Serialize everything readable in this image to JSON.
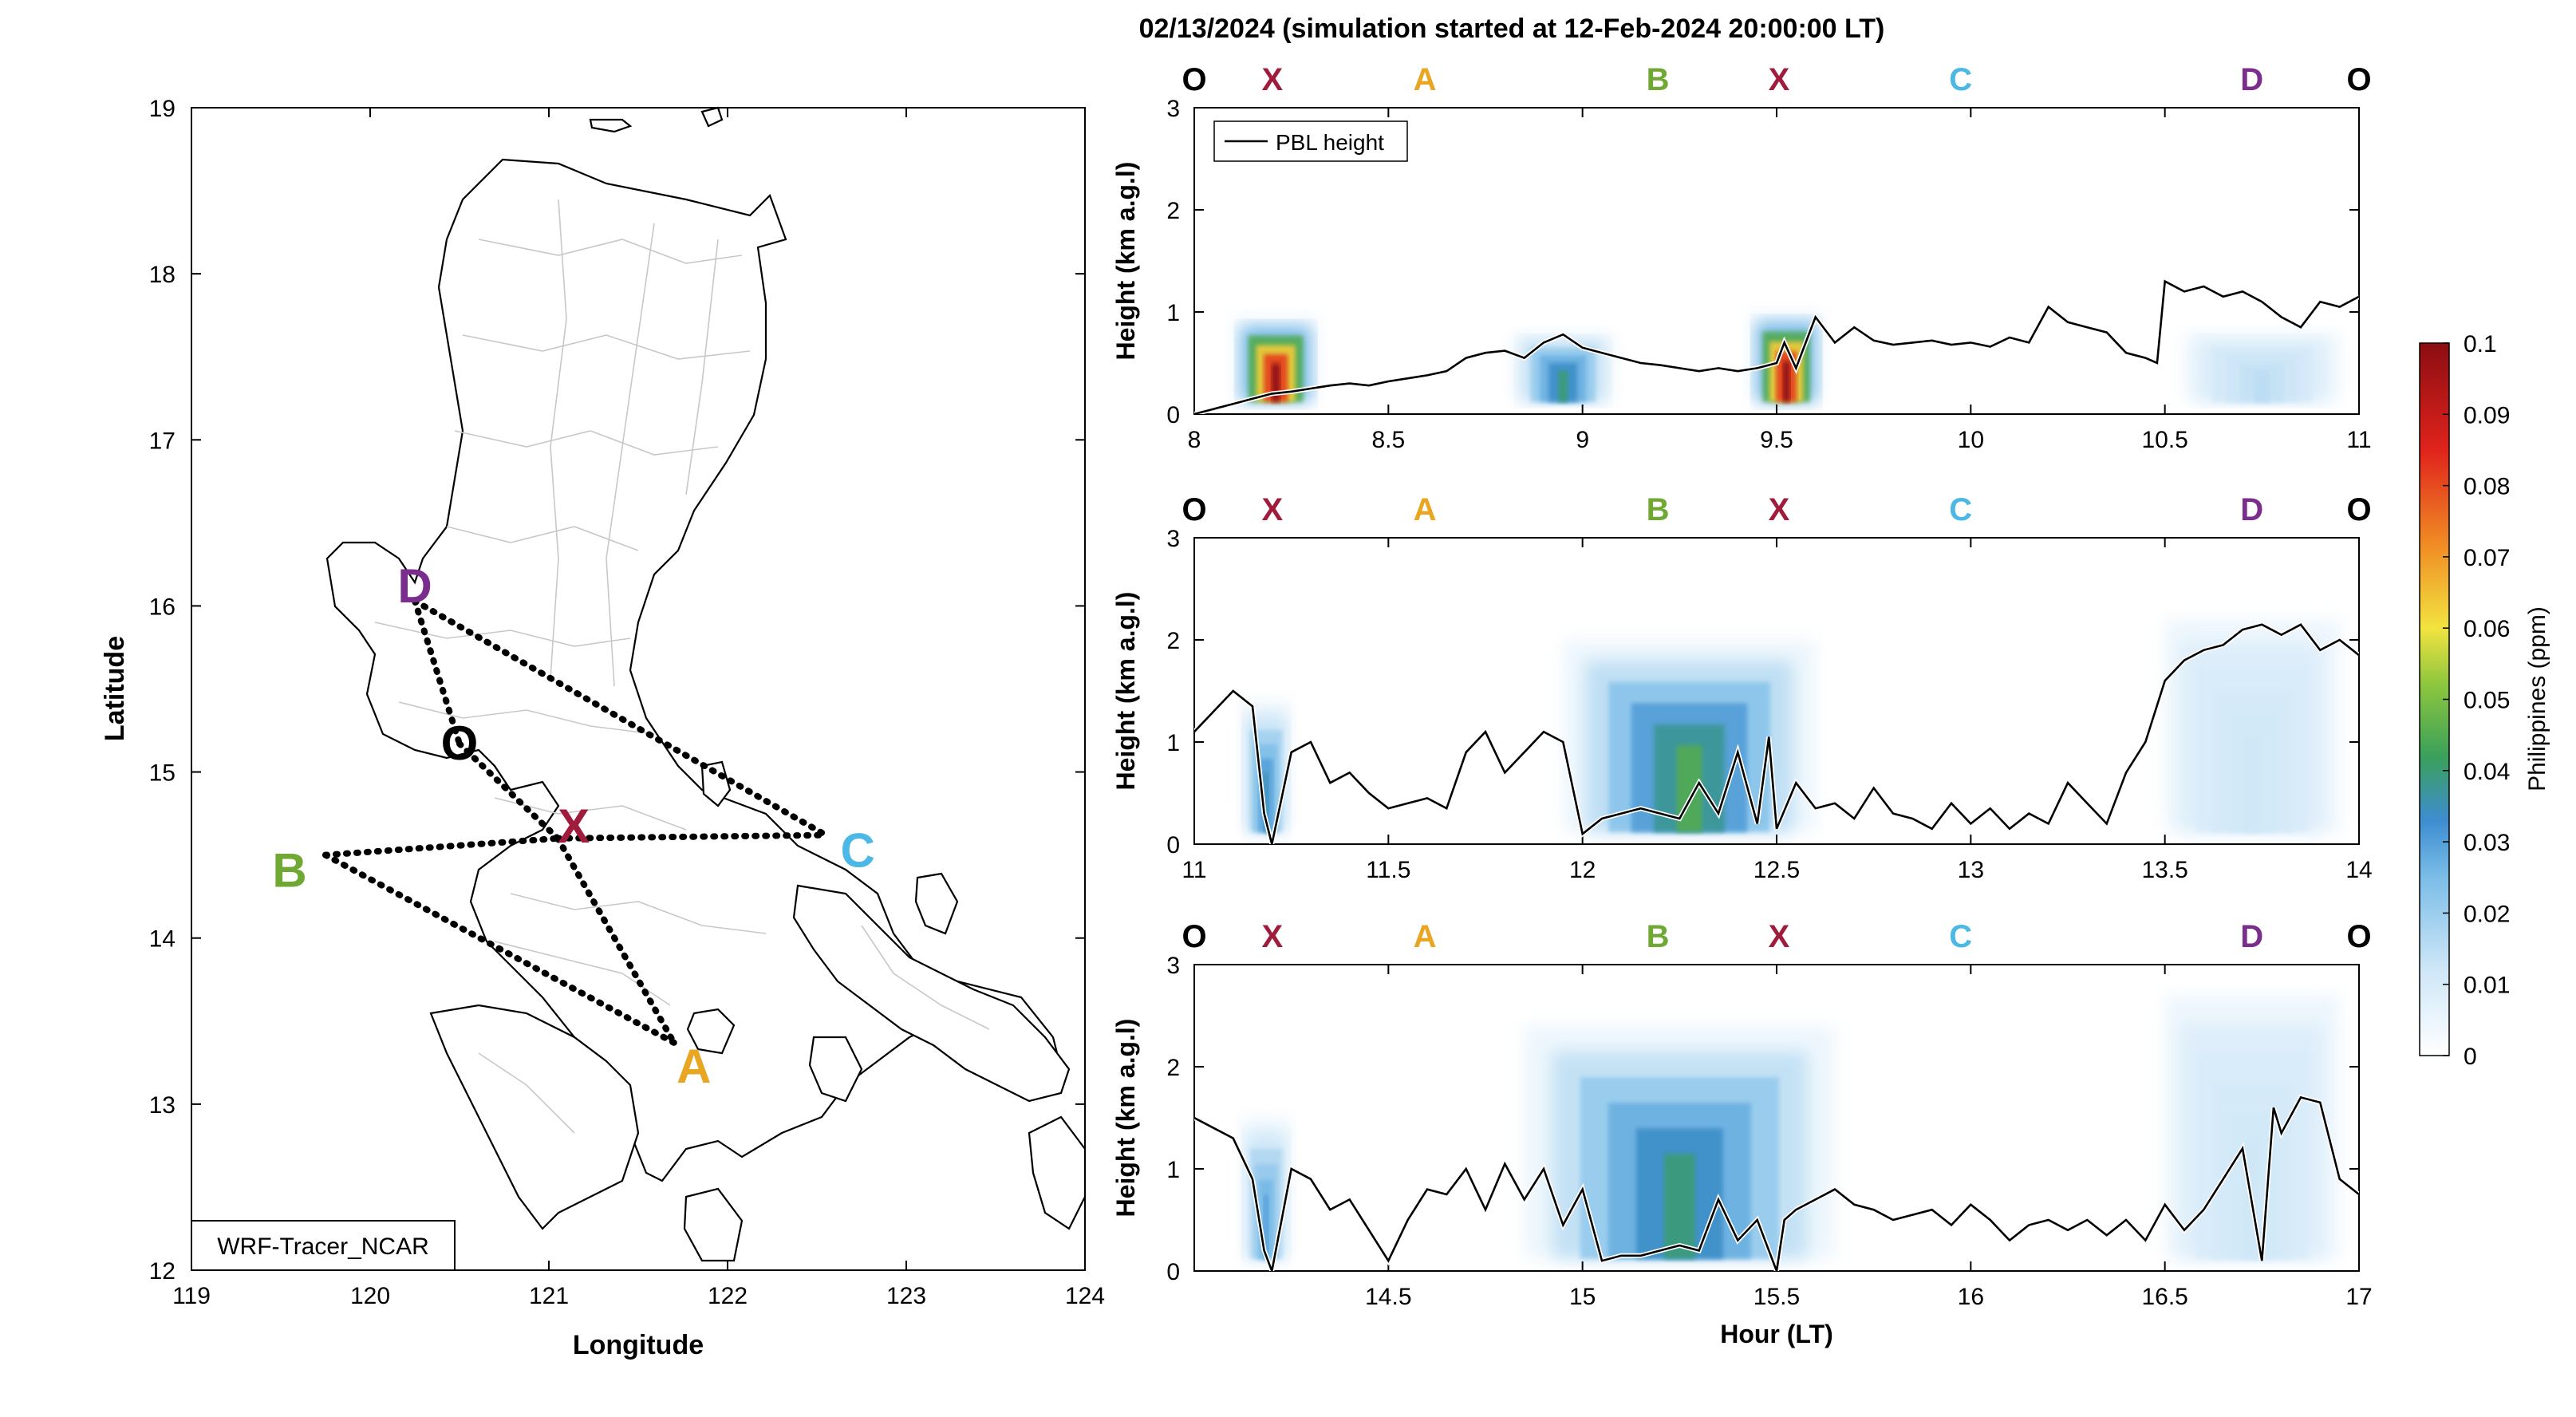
{
  "figure_title": "02/13/2024 (simulation started at 12-Feb-2024 20:00:00 LT)",
  "map": {
    "xlabel": "Longitude",
    "ylabel": "Latitude",
    "xticks": [
      "119",
      "120",
      "121",
      "122",
      "123",
      "124"
    ],
    "yticks": [
      "12",
      "13",
      "14",
      "15",
      "16",
      "17",
      "18",
      "19"
    ],
    "xlim": [
      119,
      124
    ],
    "ylim": [
      12,
      19
    ],
    "model_label": "WRF-Tracer_NCAR",
    "points": [
      {
        "label": "D",
        "lon": 120.25,
        "lat": 16.03,
        "color": "#7B2D8E"
      },
      {
        "label": "O",
        "lon": 120.5,
        "lat": 15.17,
        "color": "#000000"
      },
      {
        "label": "X",
        "lon": 121.05,
        "lat": 14.6,
        "color": "#A01C3C"
      },
      {
        "label": "C",
        "lon": 122.55,
        "lat": 14.62,
        "color": "#4BB8E6"
      },
      {
        "label": "B",
        "lon": 119.75,
        "lat": 14.5,
        "color": "#6FA832"
      },
      {
        "label": "A",
        "lon": 121.7,
        "lat": 13.37,
        "color": "#E8A623"
      }
    ]
  },
  "panels_common": {
    "ylabel": "Height (km a.g.l)",
    "xlabel": "Hour (LT)",
    "legend": "PBL height",
    "yticks": [
      "0",
      "1",
      "2",
      "3"
    ],
    "ylim": [
      0,
      3
    ],
    "segment_labels": [
      {
        "label": "O",
        "frac": 0.0,
        "color": "#000000"
      },
      {
        "label": "X",
        "frac": 0.067,
        "color": "#A01C3C"
      },
      {
        "label": "A",
        "frac": 0.198,
        "color": "#E8A623"
      },
      {
        "label": "B",
        "frac": 0.398,
        "color": "#6FA832"
      },
      {
        "label": "X",
        "frac": 0.502,
        "color": "#A01C3C"
      },
      {
        "label": "C",
        "frac": 0.658,
        "color": "#4BB8E6"
      },
      {
        "label": "D",
        "frac": 0.908,
        "color": "#7B2D8E"
      },
      {
        "label": "O",
        "frac": 1.0,
        "color": "#000000"
      }
    ]
  },
  "colorbar": {
    "label": "Philippines (ppm)",
    "ticks": [
      "0",
      "0.01",
      "0.02",
      "0.03",
      "0.04",
      "0.05",
      "0.06",
      "0.07",
      "0.08",
      "0.09",
      "0.1"
    ],
    "range": [
      0,
      0.1
    ]
  },
  "chart_data": [
    {
      "type": "line",
      "xlim": [
        8,
        11
      ],
      "xticks": [
        "8",
        "8.5",
        "9",
        "9.5",
        "10",
        "10.5",
        "11"
      ],
      "series": [
        {
          "name": "PBL height",
          "x": [
            8.0,
            8.05,
            8.1,
            8.15,
            8.2,
            8.25,
            8.3,
            8.35,
            8.4,
            8.45,
            8.5,
            8.55,
            8.6,
            8.65,
            8.7,
            8.75,
            8.8,
            8.85,
            8.9,
            8.95,
            9.0,
            9.05,
            9.1,
            9.15,
            9.2,
            9.25,
            9.3,
            9.35,
            9.4,
            9.45,
            9.5,
            9.52,
            9.55,
            9.58,
            9.6,
            9.65,
            9.7,
            9.75,
            9.8,
            9.85,
            9.9,
            9.95,
            10.0,
            10.05,
            10.1,
            10.15,
            10.2,
            10.25,
            10.3,
            10.35,
            10.4,
            10.45,
            10.48,
            10.5,
            10.55,
            10.6,
            10.65,
            10.7,
            10.75,
            10.8,
            10.85,
            10.9,
            10.95,
            11.0
          ],
          "y": [
            0.0,
            0.05,
            0.1,
            0.15,
            0.2,
            0.22,
            0.25,
            0.28,
            0.3,
            0.28,
            0.32,
            0.35,
            0.38,
            0.42,
            0.55,
            0.6,
            0.62,
            0.55,
            0.7,
            0.78,
            0.65,
            0.6,
            0.55,
            0.5,
            0.48,
            0.45,
            0.42,
            0.45,
            0.42,
            0.45,
            0.5,
            0.7,
            0.45,
            0.75,
            0.95,
            0.7,
            0.85,
            0.72,
            0.68,
            0.7,
            0.72,
            0.68,
            0.7,
            0.66,
            0.75,
            0.7,
            1.05,
            0.9,
            0.85,
            0.8,
            0.6,
            0.55,
            0.5,
            1.3,
            1.2,
            1.25,
            1.15,
            1.2,
            1.1,
            0.95,
            0.85,
            1.1,
            1.05,
            1.15
          ]
        }
      ],
      "plume": [
        {
          "x_start": 8.1,
          "x_end": 8.32,
          "top": 0.95,
          "peak": 0.1
        },
        {
          "x_start": 8.82,
          "x_end": 9.08,
          "top": 0.8,
          "peak": 0.04
        },
        {
          "x_start": 9.43,
          "x_end": 9.62,
          "top": 1.0,
          "peak": 0.1
        },
        {
          "x_start": 10.55,
          "x_end": 10.95,
          "top": 0.8,
          "peak": 0.015
        }
      ]
    },
    {
      "type": "line",
      "xlim": [
        11,
        14
      ],
      "xticks": [
        "11",
        "11.5",
        "12",
        "12.5",
        "13",
        "13.5",
        "14"
      ],
      "series": [
        {
          "name": "PBL height",
          "x": [
            11.0,
            11.05,
            11.1,
            11.15,
            11.18,
            11.2,
            11.25,
            11.3,
            11.35,
            11.4,
            11.45,
            11.5,
            11.55,
            11.6,
            11.65,
            11.7,
            11.75,
            11.8,
            11.85,
            11.9,
            11.95,
            12.0,
            12.05,
            12.1,
            12.15,
            12.2,
            12.25,
            12.3,
            12.35,
            12.4,
            12.45,
            12.48,
            12.5,
            12.55,
            12.6,
            12.65,
            12.7,
            12.75,
            12.8,
            12.85,
            12.9,
            12.95,
            13.0,
            13.05,
            13.1,
            13.15,
            13.2,
            13.25,
            13.3,
            13.35,
            13.4,
            13.45,
            13.5,
            13.55,
            13.6,
            13.65,
            13.7,
            13.75,
            13.8,
            13.85,
            13.9,
            13.95,
            14.0
          ],
          "y": [
            1.1,
            1.3,
            1.5,
            1.35,
            0.3,
            0.0,
            0.9,
            1.0,
            0.6,
            0.7,
            0.5,
            0.35,
            0.4,
            0.45,
            0.35,
            0.9,
            1.1,
            0.7,
            0.9,
            1.1,
            1.0,
            0.1,
            0.25,
            0.3,
            0.35,
            0.3,
            0.25,
            0.6,
            0.3,
            0.9,
            0.2,
            1.05,
            0.15,
            0.6,
            0.35,
            0.4,
            0.25,
            0.55,
            0.3,
            0.25,
            0.15,
            0.4,
            0.2,
            0.35,
            0.15,
            0.3,
            0.2,
            0.6,
            0.4,
            0.2,
            0.7,
            1.0,
            1.6,
            1.8,
            1.9,
            1.95,
            2.1,
            2.15,
            2.05,
            2.15,
            1.9,
            2.0,
            1.85
          ]
        }
      ],
      "plume": [
        {
          "x_start": 11.12,
          "x_end": 11.25,
          "top": 1.4,
          "peak": 0.035
        },
        {
          "x_start": 11.95,
          "x_end": 12.6,
          "top": 2.0,
          "peak": 0.045
        },
        {
          "x_start": 13.5,
          "x_end": 13.95,
          "top": 2.2,
          "peak": 0.012
        }
      ]
    },
    {
      "type": "line",
      "xlim": [
        14,
        17
      ],
      "xticks": [
        "14.5",
        "15",
        "15.5",
        "16",
        "16.5",
        "17"
      ],
      "series": [
        {
          "name": "PBL height",
          "x": [
            14.0,
            14.05,
            14.1,
            14.15,
            14.18,
            14.2,
            14.25,
            14.3,
            14.35,
            14.4,
            14.45,
            14.5,
            14.55,
            14.6,
            14.65,
            14.7,
            14.75,
            14.8,
            14.85,
            14.9,
            14.95,
            15.0,
            15.05,
            15.1,
            15.15,
            15.2,
            15.25,
            15.3,
            15.35,
            15.4,
            15.45,
            15.5,
            15.52,
            15.55,
            15.6,
            15.65,
            15.7,
            15.75,
            15.8,
            15.85,
            15.9,
            15.95,
            16.0,
            16.05,
            16.1,
            16.15,
            16.2,
            16.25,
            16.3,
            16.35,
            16.4,
            16.45,
            16.5,
            16.55,
            16.6,
            16.65,
            16.7,
            16.75,
            16.78,
            16.8,
            16.85,
            16.9,
            16.95,
            17.0
          ],
          "y": [
            1.5,
            1.4,
            1.3,
            0.9,
            0.2,
            0.0,
            1.0,
            0.9,
            0.6,
            0.7,
            0.4,
            0.1,
            0.5,
            0.8,
            0.75,
            1.0,
            0.6,
            1.05,
            0.7,
            1.0,
            0.45,
            0.8,
            0.1,
            0.15,
            0.15,
            0.2,
            0.25,
            0.2,
            0.7,
            0.3,
            0.5,
            0.0,
            0.5,
            0.6,
            0.7,
            0.8,
            0.65,
            0.6,
            0.5,
            0.55,
            0.6,
            0.45,
            0.65,
            0.5,
            0.3,
            0.45,
            0.5,
            0.4,
            0.5,
            0.35,
            0.5,
            0.3,
            0.65,
            0.4,
            0.6,
            0.9,
            1.2,
            0.1,
            1.6,
            1.35,
            1.7,
            1.65,
            0.9,
            0.75
          ]
        }
      ],
      "plume": [
        {
          "x_start": 14.12,
          "x_end": 14.25,
          "top": 1.5,
          "peak": 0.03
        },
        {
          "x_start": 14.85,
          "x_end": 15.65,
          "top": 2.4,
          "peak": 0.04
        },
        {
          "x_start": 16.5,
          "x_end": 16.95,
          "top": 2.7,
          "peak": 0.012
        }
      ]
    }
  ]
}
